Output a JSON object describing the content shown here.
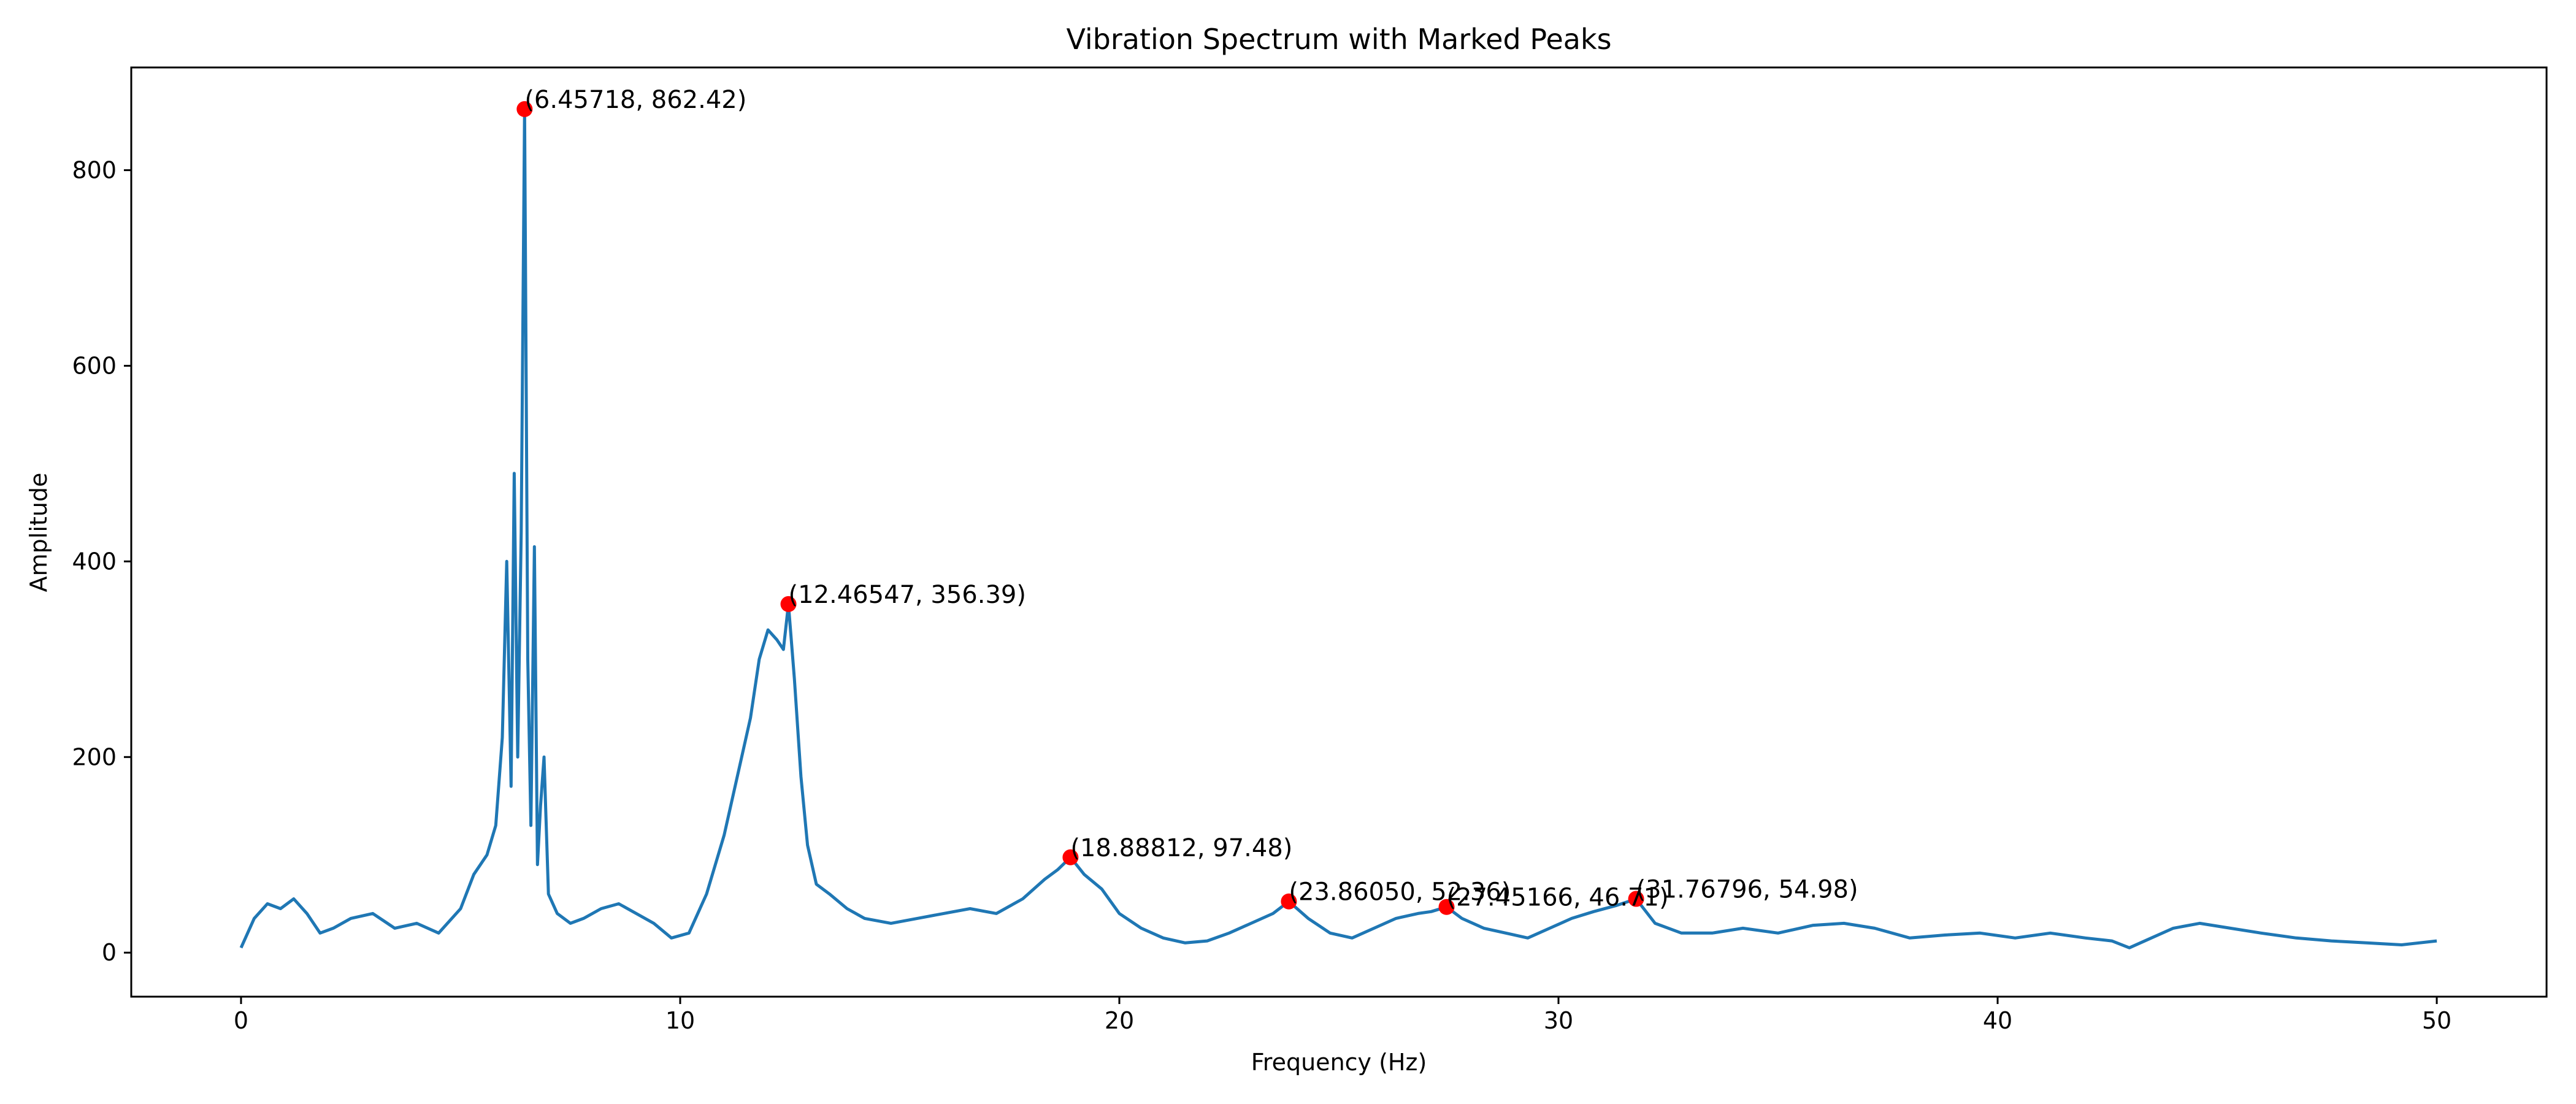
{
  "chart_data": {
    "type": "line",
    "title": "Vibration Spectrum with Marked Peaks",
    "xlabel": "Frequency (Hz)",
    "ylabel": "Amplitude",
    "xlim": [
      -2.5,
      52.5
    ],
    "ylim": [
      -45,
      905
    ],
    "xticks": [
      0,
      10,
      20,
      30,
      40,
      50
    ],
    "yticks": [
      0,
      200,
      400,
      600,
      800
    ],
    "grid": false,
    "line_color": "#1f77b4",
    "marker_color": "#ff0000",
    "series": [
      {
        "x": [
          0,
          0.3,
          0.6,
          0.9,
          1.2,
          1.5,
          1.8,
          2.1,
          2.5,
          3.0,
          3.5,
          4.0,
          4.5,
          5.0,
          5.3,
          5.6,
          5.8,
          5.95,
          6.05,
          6.15,
          6.22,
          6.3,
          6.38,
          6.45718,
          6.53,
          6.6,
          6.68,
          6.75,
          6.82,
          6.9,
          7.0,
          7.2,
          7.5,
          7.8,
          8.2,
          8.6,
          9.0,
          9.4,
          9.8,
          10.2,
          10.6,
          11.0,
          11.3,
          11.6,
          11.8,
          12.0,
          12.2,
          12.35,
          12.46547,
          12.6,
          12.75,
          12.9,
          13.1,
          13.4,
          13.8,
          14.2,
          14.8,
          15.4,
          16.0,
          16.6,
          17.2,
          17.8,
          18.3,
          18.6,
          18.88812,
          19.2,
          19.6,
          20.0,
          20.5,
          21.0,
          21.5,
          22.0,
          22.5,
          23.0,
          23.5,
          23.8605,
          24.3,
          24.8,
          25.3,
          25.8,
          26.3,
          26.8,
          27.1,
          27.45166,
          27.8,
          28.3,
          28.8,
          29.3,
          29.8,
          30.3,
          30.8,
          31.3,
          31.76796,
          32.2,
          32.8,
          33.5,
          34.2,
          35.0,
          35.8,
          36.5,
          37.2,
          38.0,
          38.8,
          39.6,
          40.4,
          41.2,
          42.0,
          42.6,
          43.0,
          43.5,
          44.0,
          44.6,
          45.3,
          46.0,
          46.8,
          47.6,
          48.4,
          49.2,
          50.0
        ],
        "y": [
          5,
          35,
          50,
          45,
          55,
          40,
          20,
          25,
          35,
          40,
          25,
          30,
          20,
          45,
          80,
          100,
          130,
          220,
          400,
          170,
          490,
          200,
          430,
          862.42,
          300,
          130,
          415,
          90,
          150,
          200,
          60,
          40,
          30,
          35,
          45,
          50,
          40,
          30,
          15,
          20,
          60,
          120,
          180,
          240,
          300,
          330,
          320,
          310,
          356.39,
          280,
          180,
          110,
          70,
          60,
          45,
          35,
          30,
          35,
          40,
          45,
          40,
          55,
          75,
          85,
          97.48,
          80,
          65,
          40,
          25,
          15,
          10,
          12,
          20,
          30,
          40,
          52.36,
          35,
          20,
          15,
          25,
          35,
          40,
          42,
          46.71,
          35,
          25,
          20,
          15,
          25,
          35,
          42,
          48,
          54.98,
          30,
          20,
          20,
          25,
          20,
          28,
          30,
          25,
          15,
          18,
          20,
          15,
          20,
          15,
          12,
          5,
          15,
          25,
          30,
          25,
          20,
          15,
          12,
          10,
          8,
          12
        ]
      }
    ],
    "peaks": [
      {
        "x": 6.45718,
        "y": 862.42,
        "label": "(6.45718, 862.42)"
      },
      {
        "x": 12.46547,
        "y": 356.39,
        "label": "(12.46547, 356.39)"
      },
      {
        "x": 18.88812,
        "y": 97.48,
        "label": "(18.88812, 97.48)"
      },
      {
        "x": 23.8605,
        "y": 52.36,
        "label": "(23.86050, 52.36)"
      },
      {
        "x": 27.45166,
        "y": 46.71,
        "label": "(27.45166, 46.71)"
      },
      {
        "x": 31.76796,
        "y": 54.98,
        "label": "(31.76796, 54.98)"
      }
    ]
  }
}
